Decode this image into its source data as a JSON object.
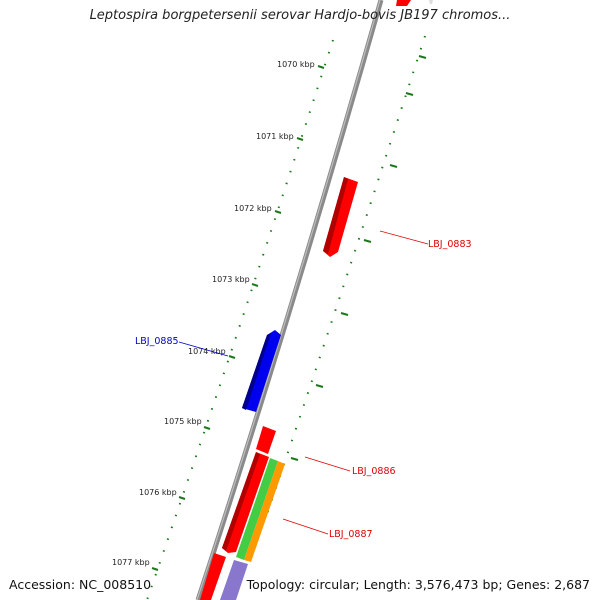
{
  "title": "Leptospira borgpetersenii serovar Hardjo-bovis JB197 chromos...",
  "footer": {
    "accession": "Accession: NC_008510",
    "summary": "Topology: circular; Length: 3,576,473 bp; Genes: 2,687"
  },
  "ruler_labels": [
    "1070 kbp",
    "1071 kbp",
    "1072 kbp",
    "1073 kbp",
    "1074 kbp",
    "1075 kbp",
    "1076 kbp",
    "1077 kbp"
  ],
  "genes": [
    {
      "id": "LBJ_0883",
      "color": "#e00000",
      "label_color": "#e00000"
    },
    {
      "id": "LBJ_0885",
      "color": "#0000dd",
      "label_color": "#0000cc"
    },
    {
      "id": "LBJ_0886",
      "color": "#e00000",
      "label_color": "#e00000"
    },
    {
      "id": "LBJ_0887",
      "color": "#e00000",
      "label_color": "#e00000"
    }
  ],
  "colors": {
    "backbone": "#8a8a8a",
    "tick_green": "#1a7a1a",
    "gene_red": "#ff0000",
    "gene_blue": "#0000ee",
    "gene_green": "#44cc44",
    "gene_orange": "#ff9900",
    "gene_lavender": "#8877cc"
  }
}
